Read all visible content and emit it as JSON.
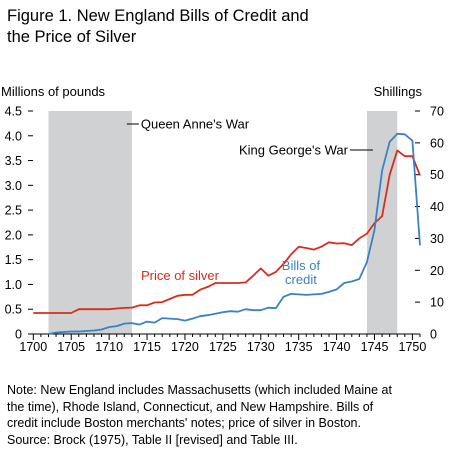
{
  "title_line1": "Figure 1. New England Bills of Credit and",
  "title_line2": "the Price of Silver",
  "chart_data": {
    "type": "line",
    "left_axis_unit": "Millions of pounds",
    "right_axis_unit": "Shillings",
    "xlim": [
      1699.3,
      1751
    ],
    "ylim_left": [
      0,
      4.5
    ],
    "ylim_right": [
      0,
      70
    ],
    "x_ticks": [
      1700,
      1705,
      1710,
      1715,
      1720,
      1725,
      1730,
      1735,
      1740,
      1745,
      1750
    ],
    "y_left_ticks": [
      "0",
      "0.5",
      "1.0",
      "1.5",
      "2.0",
      "2.5",
      "3.0",
      "3.5",
      "4.0",
      "4.5"
    ],
    "y_right_ticks": [
      "0",
      "10",
      "20",
      "30",
      "40",
      "50",
      "60",
      "70"
    ],
    "shaded_periods": [
      {
        "name": "Queen Anne's War",
        "start": 1702,
        "end": 1713
      },
      {
        "name": "King George's War",
        "start": 1744,
        "end": 1748
      }
    ],
    "series": [
      {
        "name": "Price of silver",
        "axis": "right",
        "color": "#d62d20",
        "points": [
          [
            1700,
            6.6
          ],
          [
            1701,
            6.6
          ],
          [
            1702,
            6.6
          ],
          [
            1703,
            6.6
          ],
          [
            1704,
            6.6
          ],
          [
            1705,
            6.6
          ],
          [
            1706,
            7.8
          ],
          [
            1707,
            7.8
          ],
          [
            1708,
            7.8
          ],
          [
            1709,
            7.8
          ],
          [
            1710,
            7.8
          ],
          [
            1711,
            8.0
          ],
          [
            1712,
            8.2
          ],
          [
            1713,
            8.3
          ],
          [
            1714,
            9.0
          ],
          [
            1715,
            9.0
          ],
          [
            1716,
            9.9
          ],
          [
            1717,
            10.0
          ],
          [
            1718,
            11.0
          ],
          [
            1719,
            12.0
          ],
          [
            1720,
            12.3
          ],
          [
            1721,
            12.3
          ],
          [
            1722,
            13.9
          ],
          [
            1723,
            14.8
          ],
          [
            1724,
            16.0
          ],
          [
            1725,
            16.0
          ],
          [
            1726,
            16.0
          ],
          [
            1727,
            16.0
          ],
          [
            1728,
            16.2
          ],
          [
            1729,
            18.3
          ],
          [
            1730,
            20.6
          ],
          [
            1731,
            18.3
          ],
          [
            1732,
            19.5
          ],
          [
            1733,
            22.0
          ],
          [
            1734,
            25.0
          ],
          [
            1735,
            27.4
          ],
          [
            1736,
            27.0
          ],
          [
            1737,
            26.5
          ],
          [
            1738,
            27.4
          ],
          [
            1739,
            28.8
          ],
          [
            1740,
            28.4
          ],
          [
            1741,
            28.5
          ],
          [
            1742,
            27.9
          ],
          [
            1743,
            30.0
          ],
          [
            1744,
            31.5
          ],
          [
            1745,
            34.8
          ],
          [
            1746,
            37.0
          ],
          [
            1747,
            50.0
          ],
          [
            1748,
            57.6
          ],
          [
            1749,
            55.8
          ],
          [
            1750,
            55.8
          ],
          [
            1751,
            49.8
          ]
        ]
      },
      {
        "name": "Bills of credit",
        "axis": "left",
        "color": "#3b82c4",
        "points": [
          [
            1702,
            0.0
          ],
          [
            1703,
            0.03
          ],
          [
            1704,
            0.04
          ],
          [
            1705,
            0.05
          ],
          [
            1706,
            0.05
          ],
          [
            1707,
            0.06
          ],
          [
            1708,
            0.07
          ],
          [
            1709,
            0.09
          ],
          [
            1710,
            0.14
          ],
          [
            1711,
            0.16
          ],
          [
            1712,
            0.21
          ],
          [
            1713,
            0.22
          ],
          [
            1714,
            0.19
          ],
          [
            1715,
            0.25
          ],
          [
            1716,
            0.23
          ],
          [
            1717,
            0.32
          ],
          [
            1718,
            0.31
          ],
          [
            1719,
            0.3
          ],
          [
            1720,
            0.27
          ],
          [
            1721,
            0.31
          ],
          [
            1722,
            0.36
          ],
          [
            1723,
            0.38
          ],
          [
            1724,
            0.41
          ],
          [
            1725,
            0.44
          ],
          [
            1726,
            0.46
          ],
          [
            1727,
            0.45
          ],
          [
            1728,
            0.5
          ],
          [
            1729,
            0.48
          ],
          [
            1730,
            0.48
          ],
          [
            1731,
            0.53
          ],
          [
            1732,
            0.52
          ],
          [
            1733,
            0.75
          ],
          [
            1734,
            0.81
          ],
          [
            1735,
            0.8
          ],
          [
            1736,
            0.79
          ],
          [
            1737,
            0.8
          ],
          [
            1738,
            0.81
          ],
          [
            1739,
            0.85
          ],
          [
            1740,
            0.9
          ],
          [
            1741,
            1.03
          ],
          [
            1742,
            1.06
          ],
          [
            1743,
            1.11
          ],
          [
            1744,
            1.45
          ],
          [
            1745,
            2.1
          ],
          [
            1746,
            3.3
          ],
          [
            1747,
            3.88
          ],
          [
            1748,
            4.04
          ],
          [
            1749,
            4.03
          ],
          [
            1750,
            3.9
          ],
          [
            1751,
            1.79
          ]
        ]
      }
    ],
    "labels": {
      "queen_anne": "Queen Anne's War",
      "king_george": "King George's War",
      "silver": "Price of silver",
      "bills_line1": "Bills of",
      "bills_line2": "credit"
    },
    "colors": {
      "shade": "#d0d1d3",
      "axis": "#000000",
      "silver": "#d62d20",
      "bills": "#3b82c4"
    }
  },
  "note": {
    "line1": "Note: New England includes Massachusetts (which included Maine at",
    "line2": "the time), Rhode Island, Connecticut, and New Hampshire. Bills of",
    "line3": "credit include Boston merchants' notes; price of silver in Boston.",
    "line4": "Source: Brock (1975), Table II [revised] and Table III."
  }
}
